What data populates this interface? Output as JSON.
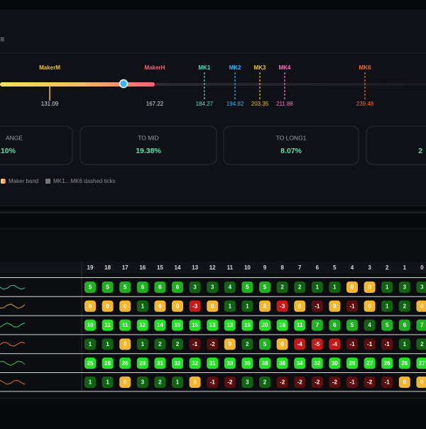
{
  "markers": [
    {
      "label": "MakerM",
      "value": 131.09,
      "color": "#f2c230",
      "style": "solid"
    },
    {
      "label": "MakerH",
      "value": 167.22,
      "color": "#ff5f7a",
      "style": "none"
    },
    {
      "label": "MK1",
      "value": 184.27,
      "color": "#4fe0c0",
      "style": "dashed"
    },
    {
      "label": "MK2",
      "value": 194.82,
      "color": "#2fb7ff",
      "style": "dashed"
    },
    {
      "label": "MK3",
      "value": 203.35,
      "color": "#f2c230",
      "style": "dashed"
    },
    {
      "label": "MK4",
      "value": 211.88,
      "color": "#ff6fc8",
      "style": "dashed"
    },
    {
      "label": "MK6",
      "value": 239.48,
      "color": "#ff6a2a",
      "style": "dashed"
    }
  ],
  "cards": [
    {
      "label": "ANGE",
      "value": ".10%"
    },
    {
      "label": "TO MID",
      "value": "19.38%"
    },
    {
      "label": "TO LONG1",
      "value": "8.07%"
    },
    {
      "label": "",
      "value": "2"
    }
  ],
  "legend": [
    "Maker band",
    "MK1…MK6 dashed ticks"
  ],
  "table": {
    "columns": [
      19,
      18,
      17,
      16,
      15,
      14,
      13,
      12,
      11,
      10,
      9,
      8,
      7,
      6,
      5,
      4,
      3,
      2,
      1,
      0
    ],
    "rows": [
      [
        5,
        5,
        5,
        6,
        6,
        6,
        3,
        3,
        4,
        5,
        5,
        2,
        2,
        1,
        1,
        0,
        0,
        1,
        3,
        3
      ],
      [
        0,
        0,
        0,
        1,
        0,
        0,
        -3,
        0,
        1,
        1,
        0,
        -3,
        0,
        -1,
        0,
        -1,
        0,
        1,
        2,
        0
      ],
      [
        10,
        11,
        11,
        12,
        14,
        15,
        15,
        13,
        13,
        15,
        20,
        16,
        11,
        7,
        6,
        5,
        4,
        5,
        6,
        7
      ],
      [
        1,
        1,
        0,
        1,
        2,
        2,
        -1,
        -2,
        0,
        2,
        5,
        0,
        -4,
        -5,
        -4,
        -1,
        -1,
        -1,
        1,
        2
      ],
      [
        25,
        26,
        26,
        29,
        31,
        32,
        32,
        31,
        33,
        36,
        38,
        36,
        34,
        32,
        30,
        29,
        27,
        26,
        26,
        27
      ],
      [
        1,
        1,
        0,
        3,
        2,
        1,
        0,
        -1,
        -2,
        3,
        2,
        -2,
        -2,
        -2,
        -2,
        -1,
        -2,
        -1,
        0,
        0
      ]
    ]
  }
}
